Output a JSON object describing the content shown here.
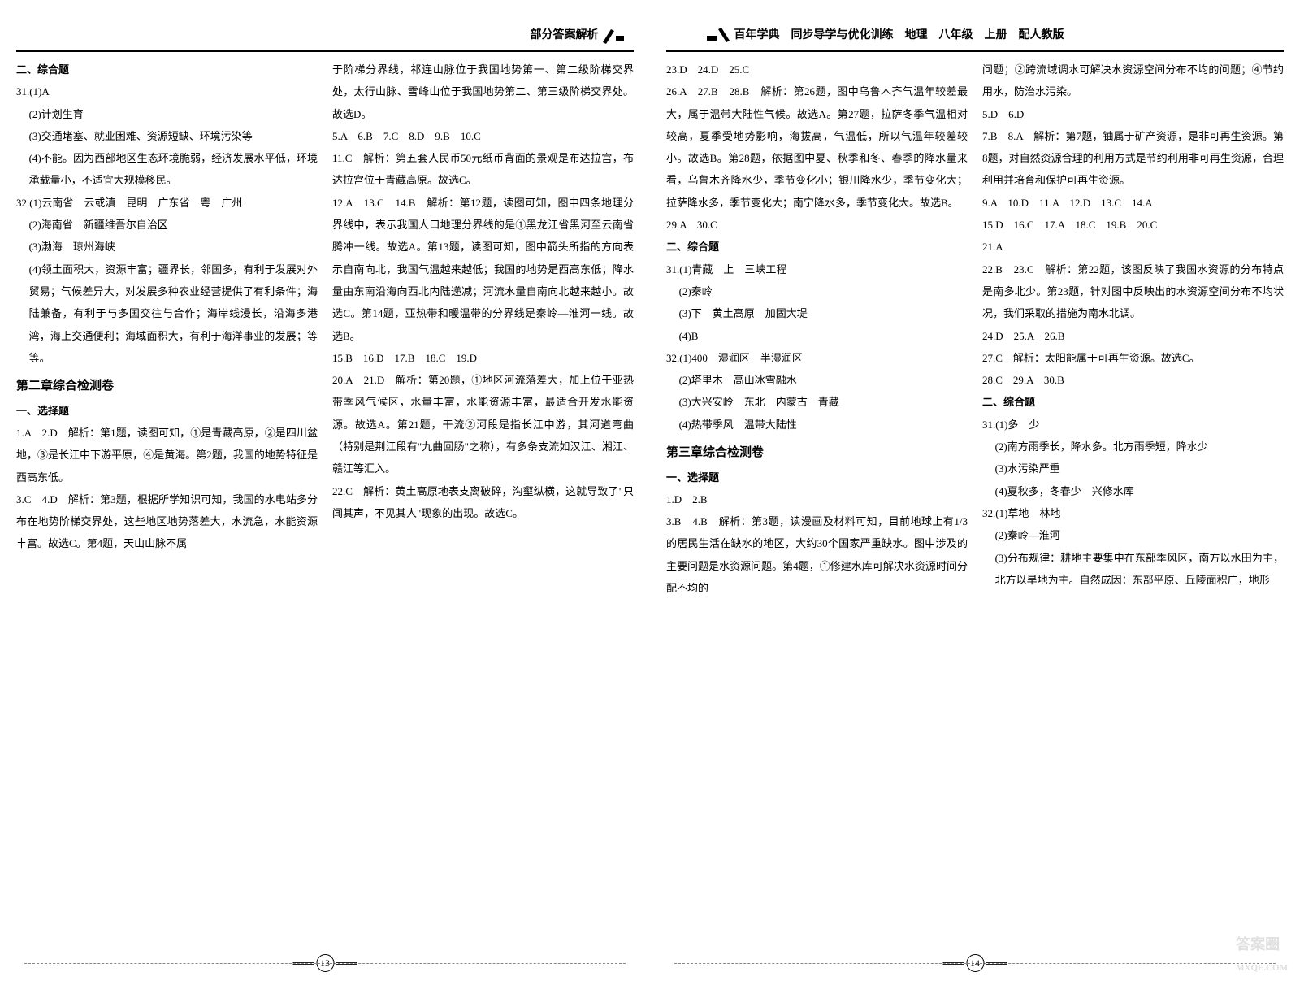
{
  "left_page": {
    "header": "部分答案解析",
    "page_number": "13",
    "col1": {
      "lines": [
        {
          "text": "二、综合题",
          "cls": "sub-title"
        },
        {
          "text": "31.(1)A"
        },
        {
          "text": "(2)计划生育",
          "cls": "indent1"
        },
        {
          "text": "(3)交通堵塞、就业困难、资源短缺、环境污染等",
          "cls": "indent1"
        },
        {
          "text": "(4)不能。因为西部地区生态环境脆弱，经济发展水平低，环境承载量小，不适宜大规模移民。",
          "cls": "indent1"
        },
        {
          "text": "32.(1)云南省　云或滇　昆明　广东省　粤　广州"
        },
        {
          "text": "(2)海南省　新疆维吾尔自治区",
          "cls": "indent1"
        },
        {
          "text": "(3)渤海　琼州海峡",
          "cls": "indent1"
        },
        {
          "text": "(4)领土面积大，资源丰富；疆界长，邻国多，有利于发展对外贸易；气候差异大，对发展多种农业经营提供了有利条件；海陆兼备，有利于与多国交往与合作；海岸线漫长，沿海多港湾，海上交通便利；海域面积大，有利于海洋事业的发展；等等。",
          "cls": "indent1"
        },
        {
          "text": "第二章综合检测卷",
          "cls": "section-title"
        },
        {
          "text": "一、选择题",
          "cls": "sub-title"
        },
        {
          "text": "1.A　2.D　解析：第1题，读图可知，①是青藏高原，②是四川盆地，③是长江中下游平原，④是黄海。第2题，我国的地势特征是西高东低。"
        },
        {
          "text": "3.C　4.D　解析：第3题，根据所学知识可知，我国的水电站多分布在地势阶梯交界处，这些地区地势落差大，水流急，水能资源丰富。故选C。第4题，天山山脉不属"
        }
      ]
    },
    "col2": {
      "lines": [
        {
          "text": "于阶梯分界线，祁连山脉位于我国地势第一、第二级阶梯交界处，太行山脉、雪峰山位于我国地势第二、第三级阶梯交界处。故选D。"
        },
        {
          "text": "5.A　6.B　7.C　8.D　9.B　10.C"
        },
        {
          "text": "11.C　解析：第五套人民币50元纸币背面的景观是布达拉宫，布达拉宫位于青藏高原。故选C。"
        },
        {
          "text": "12.A　13.C　14.B　解析：第12题，读图可知，图中四条地理分界线中，表示我国人口地理分界线的是①黑龙江省黑河至云南省腾冲一线。故选A。第13题，读图可知，图中箭头所指的方向表示自南向北，我国气温越来越低；我国的地势是西高东低；降水量由东南沿海向西北内陆递减；河流水量自南向北越来越小。故选C。第14题，亚热带和暖温带的分界线是秦岭—淮河一线。故选B。"
        },
        {
          "text": "15.B　16.D　17.B　18.C　19.D"
        },
        {
          "text": "20.A　21.D　解析：第20题，①地区河流落差大，加上位于亚热带季风气候区，水量丰富，水能资源丰富，最适合开发水能资源。故选A。第21题，干流②河段是指长江中游，其河道弯曲（特别是荆江段有\"九曲回肠\"之称），有多条支流如汉江、湘江、赣江等汇入。"
        },
        {
          "text": "22.C　解析：黄土高原地表支离破碎，沟壑纵横，这就导致了\"只闻其声，不见其人\"现象的出现。故选C。"
        }
      ]
    }
  },
  "right_page": {
    "header": "百年学典　同步导学与优化训练　地理　八年级　上册　配人教版",
    "page_number": "14",
    "col1": {
      "lines": [
        {
          "text": "23.D　24.D　25.C"
        },
        {
          "text": "26.A　27.B　28.B　解析：第26题，图中乌鲁木齐气温年较差最大，属于温带大陆性气候。故选A。第27题，拉萨冬季气温相对较高，夏季受地势影响，海拔高，气温低，所以气温年较差较小。故选B。第28题，依据图中夏、秋季和冬、春季的降水量来看，乌鲁木齐降水少，季节变化小；银川降水少，季节变化大；拉萨降水多，季节变化大；南宁降水多，季节变化大。故选B。"
        },
        {
          "text": "29.A　30.C"
        },
        {
          "text": "二、综合题",
          "cls": "sub-title"
        },
        {
          "text": "31.(1)青藏　上　三峡工程"
        },
        {
          "text": "(2)秦岭",
          "cls": "indent1"
        },
        {
          "text": "(3)下　黄土高原　加固大堤",
          "cls": "indent1"
        },
        {
          "text": "(4)B",
          "cls": "indent1"
        },
        {
          "text": "32.(1)400　湿润区　半湿润区"
        },
        {
          "text": "(2)塔里木　高山冰雪融水",
          "cls": "indent1"
        },
        {
          "text": "(3)大兴安岭　东北　内蒙古　青藏",
          "cls": "indent1"
        },
        {
          "text": "(4)热带季风　温带大陆性",
          "cls": "indent1"
        },
        {
          "text": "第三章综合检测卷",
          "cls": "section-title"
        },
        {
          "text": "一、选择题",
          "cls": "sub-title"
        },
        {
          "text": "1.D　2.B"
        },
        {
          "text": "3.B　4.B　解析：第3题，读漫画及材料可知，目前地球上有1/3的居民生活在缺水的地区，大约30个国家严重缺水。图中涉及的主要问题是水资源问题。第4题，①修建水库可解决水资源时间分配不均的"
        }
      ]
    },
    "col2": {
      "lines": [
        {
          "text": "问题；②跨流域调水可解决水资源空间分布不均的问题；④节约用水，防治水污染。"
        },
        {
          "text": "5.D　6.D"
        },
        {
          "text": "7.B　8.A　解析：第7题，铀属于矿产资源，是非可再生资源。第8题，对自然资源合理的利用方式是节约利用非可再生资源，合理利用并培育和保护可再生资源。"
        },
        {
          "text": "9.A　10.D　11.A　12.D　13.C　14.A"
        },
        {
          "text": "15.D　16.C　17.A　18.C　19.B　20.C"
        },
        {
          "text": "21.A"
        },
        {
          "text": "22.B　23.C　解析：第22题，该图反映了我国水资源的分布特点是南多北少。第23题，针对图中反映出的水资源空间分布不均状况，我们采取的措施为南水北调。"
        },
        {
          "text": "24.D　25.A　26.B"
        },
        {
          "text": "27.C　解析：太阳能属于可再生资源。故选C。"
        },
        {
          "text": "28.C　29.A　30.B"
        },
        {
          "text": "二、综合题",
          "cls": "sub-title"
        },
        {
          "text": "31.(1)多　少"
        },
        {
          "text": "(2)南方雨季长，降水多。北方雨季短，降水少",
          "cls": "indent1"
        },
        {
          "text": "(3)水污染严重",
          "cls": "indent1"
        },
        {
          "text": "(4)夏秋多，冬春少　兴修水库",
          "cls": "indent1"
        },
        {
          "text": "32.(1)草地　林地"
        },
        {
          "text": "(2)秦岭—淮河",
          "cls": "indent1"
        },
        {
          "text": "(3)分布规律：耕地主要集中在东部季风区，南方以水田为主，北方以旱地为主。自然成因：东部平原、丘陵面积广，地形",
          "cls": "indent1"
        }
      ]
    }
  },
  "watermark": "答案圈",
  "watermark_url": "MXQE.COM"
}
